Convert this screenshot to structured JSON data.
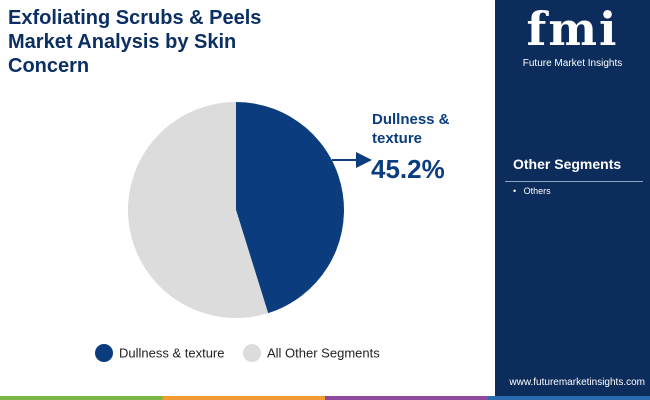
{
  "chart_data": {
    "type": "pie",
    "title": "Exfoliating Scrubs & Peels Market Analysis by Skin Concern",
    "categories": [
      "Dullness & texture",
      "All Other Segments"
    ],
    "values": [
      45.2,
      54.8
    ],
    "value_labels": [
      "45.2%",
      null
    ],
    "colors": [
      "#0b3d7e",
      "#dcdcdc"
    ],
    "legend": "bottom"
  },
  "sidebar": {
    "logo_mark": "fmi",
    "logo_text": "Future Market Insights",
    "heading": "Other Segments",
    "items": [
      "Others"
    ],
    "url": "www.futuremarketinsights.com"
  }
}
